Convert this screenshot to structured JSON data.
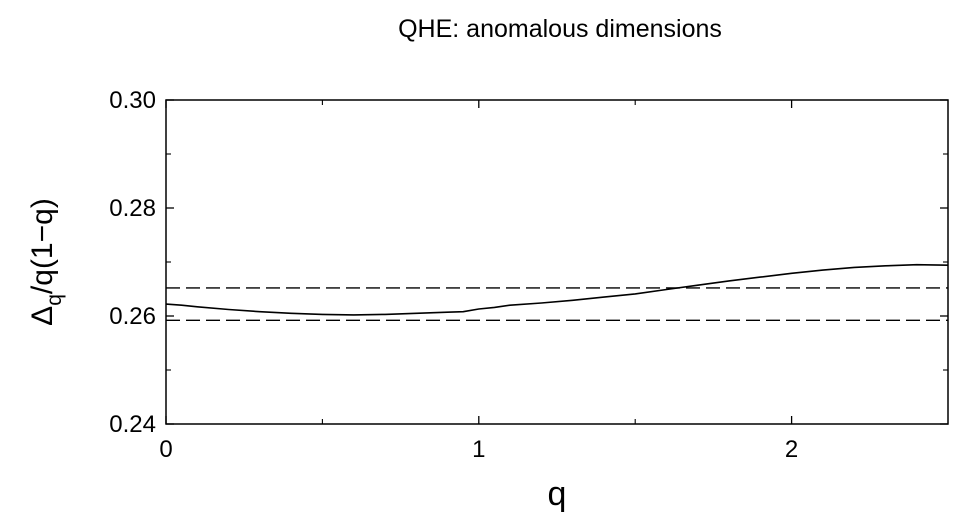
{
  "chart_data": {
    "type": "line",
    "title": "QHE: anomalous dimensions",
    "xlabel": "q",
    "ylabel": {
      "main": "Δ",
      "sub": "q",
      "tail": "/q(1−q)"
    },
    "xlim": [
      0,
      2.5
    ],
    "ylim": [
      0.24,
      0.3
    ],
    "x_ticks": [
      0,
      1,
      2
    ],
    "x_tick_labels": [
      "0",
      "1",
      "2"
    ],
    "y_ticks": [
      0.24,
      0.26,
      0.28,
      0.3
    ],
    "y_tick_labels": [
      "0.24",
      "0.26",
      "0.28",
      "0.30"
    ],
    "grid": false,
    "legend": "none",
    "series": [
      {
        "style": "solid",
        "x": [
          0.0,
          0.05,
          0.1,
          0.2,
          0.3,
          0.4,
          0.5,
          0.6,
          0.7,
          0.8,
          0.9,
          0.95,
          1.0,
          1.05,
          1.1,
          1.2,
          1.3,
          1.4,
          1.5,
          1.6,
          1.7,
          1.8,
          1.9,
          2.0,
          2.1,
          2.2,
          2.3,
          2.4,
          2.5
        ],
        "y": [
          0.2622,
          0.262,
          0.2617,
          0.2612,
          0.2608,
          0.2605,
          0.2603,
          0.2602,
          0.2603,
          0.2605,
          0.2607,
          0.2608,
          0.2613,
          0.2616,
          0.262,
          0.2624,
          0.2629,
          0.2635,
          0.2641,
          0.2649,
          0.2657,
          0.2665,
          0.2672,
          0.2679,
          0.2685,
          0.269,
          0.2693,
          0.2695,
          0.2694
        ]
      }
    ],
    "reference_lines": [
      {
        "style": "dashed",
        "y": 0.2652
      },
      {
        "style": "dashed",
        "y": 0.2592
      }
    ]
  }
}
